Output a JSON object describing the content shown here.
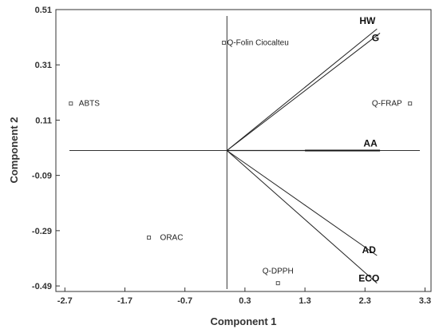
{
  "chart_data": {
    "type": "scatter",
    "xlabel": "Component  1",
    "ylabel": "Component  2",
    "xlim": [
      -2.85,
      3.4
    ],
    "ylim": [
      -0.51,
      0.51
    ],
    "x_ticks": [
      "-2.7",
      "-1.7",
      "-0.7",
      "0.3",
      "1.3",
      "2.3",
      "3.3"
    ],
    "y_ticks": [
      "0.51",
      "0.31",
      "0.11",
      "-0.09",
      "-0.29",
      "-0.49"
    ],
    "points": [
      {
        "label": "Q-Folin Ciocalteu",
        "x": -0.05,
        "y": 0.39
      },
      {
        "label": "ABTS",
        "x": -2.6,
        "y": 0.17
      },
      {
        "label": "Q-FRAP",
        "x": 3.05,
        "y": 0.17
      },
      {
        "label": "ORAC",
        "x": -1.3,
        "y": -0.315
      },
      {
        "label": "Q-DPPH",
        "x": 0.85,
        "y": -0.48
      }
    ],
    "vectors": [
      {
        "label": "HW",
        "x": 2.5,
        "y": 0.44
      },
      {
        "label": "G",
        "x": 2.55,
        "y": 0.425
      },
      {
        "label": "AA",
        "x": 2.55,
        "y": 0.0
      },
      {
        "label": "AD",
        "x": 2.5,
        "y": -0.38
      },
      {
        "label": "ECO",
        "x": 2.5,
        "y": -0.48
      }
    ]
  }
}
